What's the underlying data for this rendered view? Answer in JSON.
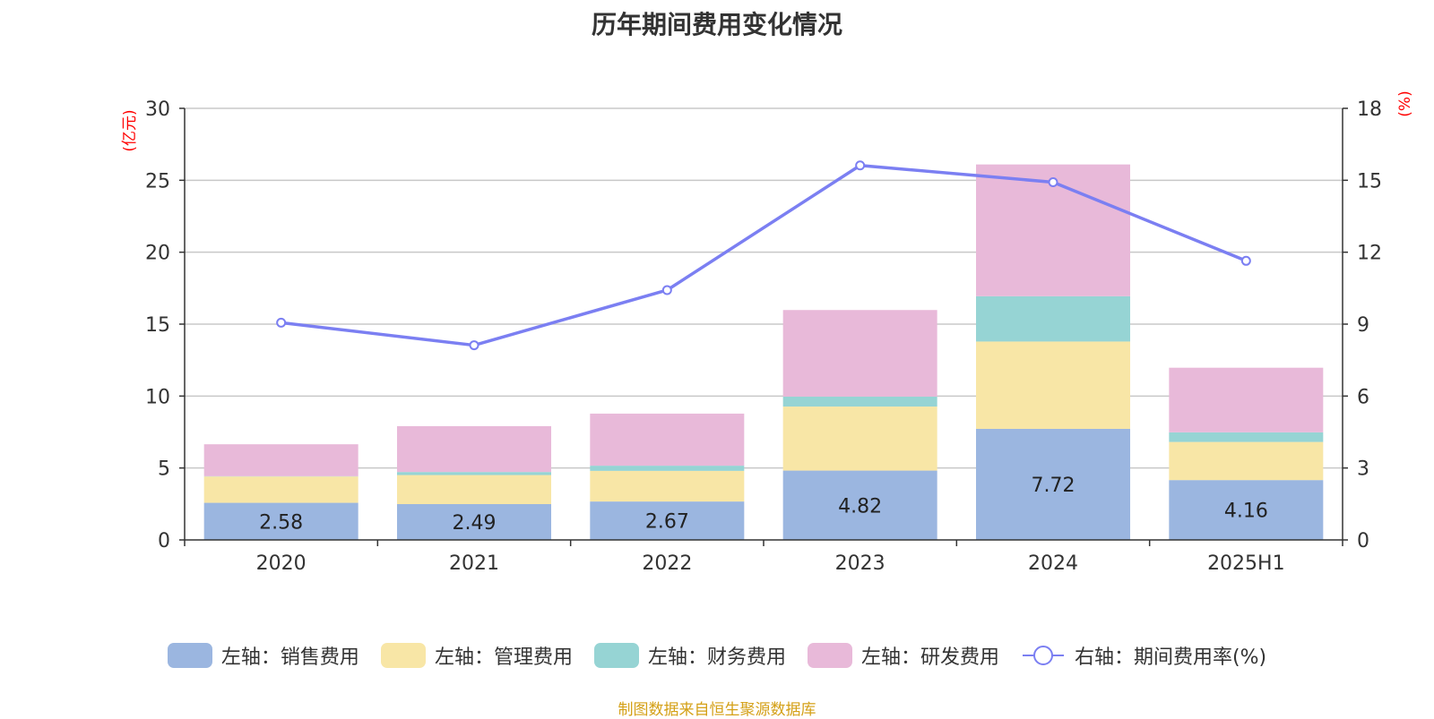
{
  "chart_data": {
    "type": "bar",
    "stacked": true,
    "title": "历年期间费用变化情况",
    "categories": [
      "2020",
      "2021",
      "2022",
      "2023",
      "2024",
      "2025H1"
    ],
    "left_axis": {
      "unit": "(亿元)",
      "ylim": [
        0,
        30
      ],
      "ticks": [
        "0",
        "5",
        "10",
        "15",
        "20",
        "25",
        "30"
      ]
    },
    "right_axis": {
      "unit": "(%)",
      "ylim": [
        0,
        18
      ],
      "ticks": [
        "0",
        "3",
        "6",
        "9",
        "12",
        "15",
        "18"
      ]
    },
    "grid": true,
    "legend_position": "bottom",
    "series": [
      {
        "name": "左轴：销售费用",
        "type": "bar",
        "axis": "left",
        "color": "#9bb6e0",
        "values": [
          2.58,
          2.49,
          2.67,
          4.82,
          7.72,
          4.16
        ],
        "labels": [
          "2.58",
          "2.49",
          "2.67",
          "4.82",
          "7.72",
          "4.16"
        ]
      },
      {
        "name": "左轴：管理费用",
        "type": "bar",
        "axis": "left",
        "color": "#f8e6a6",
        "values": [
          1.83,
          2.02,
          2.13,
          4.45,
          6.07,
          2.65
        ]
      },
      {
        "name": "左轴：财务费用",
        "type": "bar",
        "axis": "left",
        "color": "#96d4d4",
        "values": [
          0.02,
          0.21,
          0.36,
          0.69,
          3.15,
          0.67
        ]
      },
      {
        "name": "左轴：研发费用",
        "type": "bar",
        "axis": "left",
        "color": "#e8b9d9",
        "values": [
          2.22,
          3.19,
          3.62,
          6.02,
          9.16,
          4.49
        ]
      },
      {
        "name": "右轴：期间费用率(%)",
        "type": "line",
        "axis": "right",
        "color": "#7b7ff2",
        "values": [
          9.06,
          8.12,
          10.42,
          15.62,
          14.92,
          11.64
        ]
      }
    ]
  },
  "source_note": "制图数据来自恒生聚源数据库"
}
